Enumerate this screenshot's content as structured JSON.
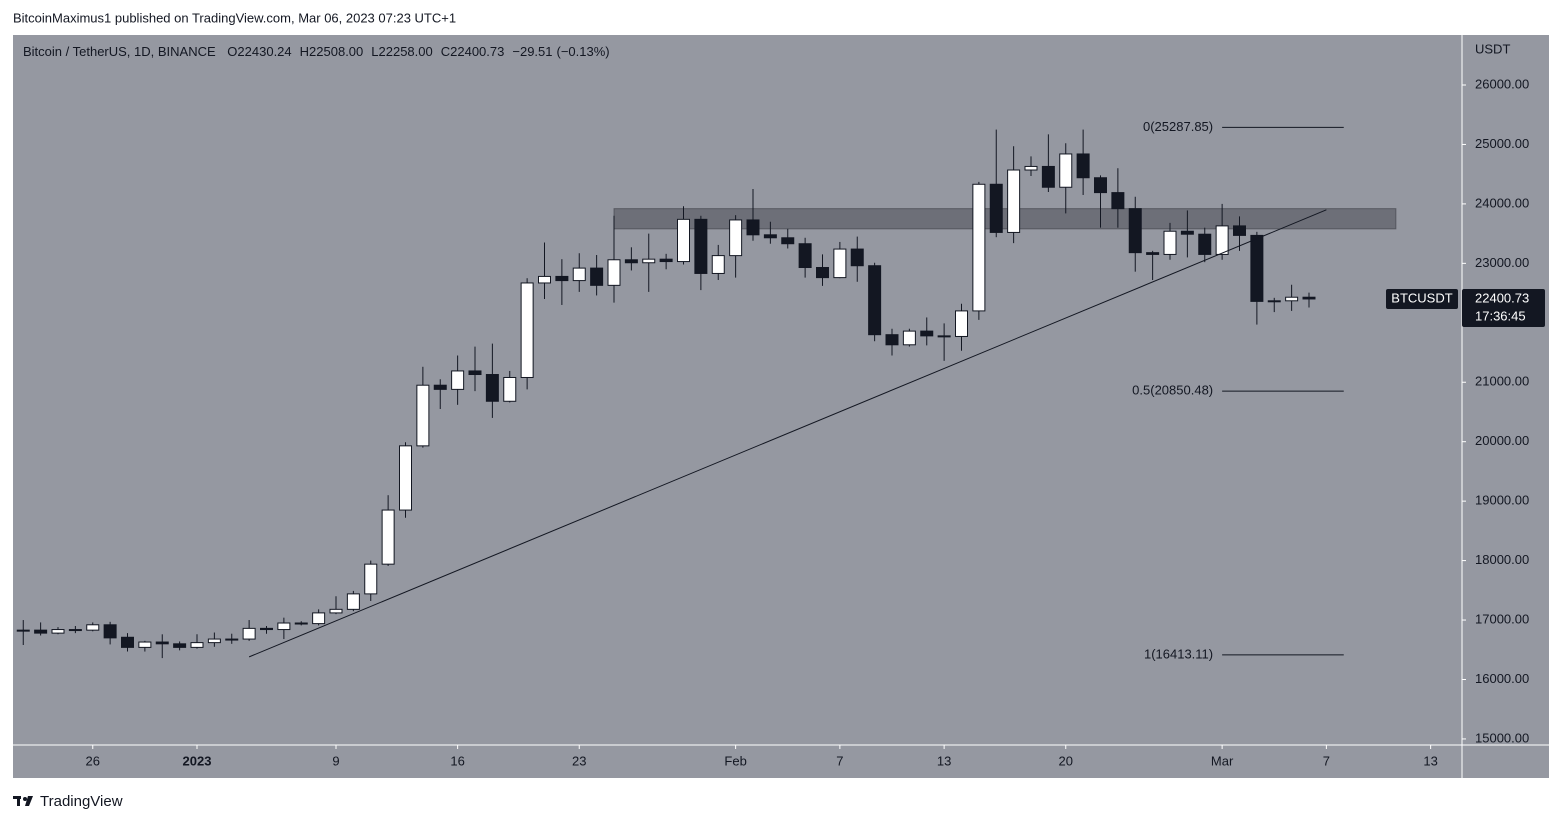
{
  "header": {
    "byline": "BitcoinMaximus1 published on TradingView.com, Mar 06, 2023 07:23 UTC+1"
  },
  "footer": {
    "brand": "TradingView"
  },
  "chart_data": {
    "type": "candlestick",
    "title": "Bitcoin / TetherUS, 1D, BINANCE",
    "legend_ohlc": [
      [
        "O",
        "22430.24"
      ],
      [
        "H",
        "22508.00"
      ],
      [
        "L",
        "22258.00"
      ],
      [
        "C",
        "22400.73"
      ]
    ],
    "change": "−29.51",
    "change_pct": "(−0.13%)",
    "y_unit": "USDT",
    "last_price": {
      "symbol": "BTCUSDT",
      "price": "22400.73",
      "countdown": "17:36:45"
    },
    "up_color": "#ffffff",
    "down_color": "#131722",
    "wick_color": "#131722",
    "background": "#9598a1",
    "grid": false,
    "x": [
      "2022-12-22",
      "2022-12-23",
      "2022-12-24",
      "2022-12-25",
      "2022-12-26",
      "2022-12-27",
      "2022-12-28",
      "2022-12-29",
      "2022-12-30",
      "2022-12-31",
      "2023-01-01",
      "2023-01-02",
      "2023-01-03",
      "2023-01-04",
      "2023-01-05",
      "2023-01-06",
      "2023-01-07",
      "2023-01-08",
      "2023-01-09",
      "2023-01-10",
      "2023-01-11",
      "2023-01-12",
      "2023-01-13",
      "2023-01-14",
      "2023-01-15",
      "2023-01-16",
      "2023-01-17",
      "2023-01-18",
      "2023-01-19",
      "2023-01-20",
      "2023-01-21",
      "2023-01-22",
      "2023-01-23",
      "2023-01-24",
      "2023-01-25",
      "2023-01-26",
      "2023-01-27",
      "2023-01-28",
      "2023-01-29",
      "2023-01-30",
      "2023-01-31",
      "2023-02-01",
      "2023-02-02",
      "2023-02-03",
      "2023-02-04",
      "2023-02-05",
      "2023-02-06",
      "2023-02-07",
      "2023-02-08",
      "2023-02-09",
      "2023-02-10",
      "2023-02-11",
      "2023-02-12",
      "2023-02-13",
      "2023-02-14",
      "2023-02-15",
      "2023-02-16",
      "2023-02-17",
      "2023-02-18",
      "2023-02-19",
      "2023-02-20",
      "2023-02-21",
      "2023-02-22",
      "2023-02-23",
      "2023-02-24",
      "2023-02-25",
      "2023-02-26",
      "2023-02-27",
      "2023-02-28",
      "2023-03-01",
      "2023-03-02",
      "2023-03-03",
      "2023-03-04",
      "2023-03-05",
      "2023-03-06"
    ],
    "open": [
      16820,
      16830,
      16780,
      16840,
      16830,
      16920,
      16710,
      16540,
      16630,
      16600,
      16540,
      16620,
      16680,
      16680,
      16860,
      16840,
      16950,
      16940,
      17120,
      17180,
      17440,
      17940,
      18850,
      19930,
      20950,
      20880,
      21190,
      21130,
      20680,
      21080,
      22670,
      22780,
      22710,
      22920,
      22630,
      23060,
      23010,
      23070,
      23030,
      23740,
      22830,
      23130,
      23730,
      23480,
      23430,
      23330,
      22930,
      22760,
      23240,
      22960,
      21800,
      21630,
      21860,
      21780,
      21770,
      22200,
      24330,
      23520,
      24570,
      24630,
      24280,
      24840,
      24440,
      24190,
      23920,
      23180,
      23150,
      23540,
      23490,
      23150,
      23630,
      23470,
      22360,
      22370,
      22430.24
    ],
    "high": [
      17000,
      16960,
      16880,
      16900,
      16960,
      16970,
      16780,
      16650,
      16760,
      16640,
      16760,
      16790,
      16770,
      17000,
      16900,
      17040,
      16980,
      17180,
      17400,
      17490,
      18000,
      19100,
      19990,
      21260,
      21050,
      21450,
      21600,
      21650,
      21190,
      22750,
      23350,
      23070,
      23170,
      23140,
      23800,
      23270,
      23500,
      23160,
      23960,
      23800,
      23310,
      23810,
      24250,
      23700,
      23580,
      23430,
      23150,
      23360,
      23450,
      23010,
      21900,
      21900,
      22090,
      21990,
      22320,
      24370,
      25250,
      24970,
      24800,
      25170,
      25020,
      25250,
      24480,
      24600,
      24120,
      23210,
      23680,
      23890,
      23600,
      24000,
      23790,
      23530,
      22420,
      22640,
      22508
    ],
    "low": [
      16580,
      16740,
      16760,
      16780,
      16810,
      16590,
      16470,
      16470,
      16360,
      16490,
      16520,
      16550,
      16600,
      16650,
      16770,
      16680,
      16910,
      16910,
      17100,
      17150,
      17320,
      17910,
      18720,
      19900,
      20550,
      20620,
      20850,
      20400,
      20660,
      20880,
      22400,
      22300,
      22520,
      22460,
      22340,
      22880,
      22520,
      22900,
      22980,
      22550,
      22720,
      22760,
      23380,
      23330,
      23250,
      22760,
      22620,
      22750,
      22690,
      21690,
      21450,
      21600,
      21620,
      21360,
      21530,
      22050,
      23440,
      23340,
      24470,
      24200,
      23840,
      24150,
      23600,
      23600,
      22860,
      22720,
      23060,
      23100,
      23020,
      23060,
      23210,
      21970,
      22180,
      22200,
      22258
    ],
    "close": [
      16830,
      16780,
      16840,
      16830,
      16920,
      16700,
      16540,
      16630,
      16600,
      16540,
      16620,
      16680,
      16680,
      16860,
      16840,
      16950,
      16940,
      17120,
      17180,
      17440,
      17940,
      18850,
      19930,
      20950,
      20880,
      21190,
      21130,
      20680,
      21080,
      22670,
      22780,
      22710,
      22920,
      22630,
      23060,
      23010,
      23070,
      23030,
      23740,
      22830,
      23130,
      23730,
      23480,
      23430,
      23330,
      22930,
      22760,
      23240,
      22960,
      21800,
      21630,
      21860,
      21780,
      21770,
      22200,
      24330,
      23520,
      24570,
      24630,
      24280,
      24840,
      24440,
      24190,
      23920,
      23180,
      23150,
      23540,
      23490,
      23150,
      23630,
      23470,
      22360,
      22370,
      22430,
      22400.73
    ],
    "xlim": [
      "2022-12-21",
      "2023-03-15"
    ],
    "xticks": [
      {
        "value": "2022-12-26",
        "label": "26"
      },
      {
        "value": "2023-01-01",
        "label": "2023"
      },
      {
        "value": "2023-01-09",
        "label": "9"
      },
      {
        "value": "2023-01-16",
        "label": "16"
      },
      {
        "value": "2023-01-23",
        "label": "23"
      },
      {
        "value": "2023-02-01",
        "label": "Feb"
      },
      {
        "value": "2023-02-07",
        "label": "7"
      },
      {
        "value": "2023-02-13",
        "label": "13"
      },
      {
        "value": "2023-02-20",
        "label": "20"
      },
      {
        "value": "2023-03-01",
        "label": "Mar"
      },
      {
        "value": "2023-03-07",
        "label": "7"
      },
      {
        "value": "2023-03-13",
        "label": "13"
      }
    ],
    "ylim": [
      14898,
      26841
    ],
    "yticks": [
      {
        "value": 15000,
        "label": "15000.00"
      },
      {
        "value": 16000,
        "label": "16000.00"
      },
      {
        "value": 17000,
        "label": "17000.00"
      },
      {
        "value": 18000,
        "label": "18000.00"
      },
      {
        "value": 19000,
        "label": "19000.00"
      },
      {
        "value": 20000,
        "label": "20000.00"
      },
      {
        "value": 21000,
        "label": "21000.00"
      },
      {
        "value": 22000,
        "label": "22000.00"
      },
      {
        "value": 23000,
        "label": "23000.00"
      },
      {
        "value": 24000,
        "label": "24000.00"
      },
      {
        "value": 25000,
        "label": "25000.00"
      },
      {
        "value": 26000,
        "label": "26000.00"
      }
    ],
    "fib_levels": [
      {
        "label": "0(25287.85)",
        "value": 25287.85
      },
      {
        "label": "0.5(20850.48)",
        "value": 20850.48
      },
      {
        "label": "1(16413.11)",
        "value": 16413.11
      }
    ],
    "fib_x": [
      "2023-03-01",
      "2023-03-08"
    ],
    "trendline": {
      "x": [
        "2023-01-04",
        "2023-03-07"
      ],
      "values": [
        16380,
        23900
      ]
    },
    "zone": {
      "x": [
        "2023-01-25",
        "2023-03-11"
      ],
      "values": [
        23580,
        23920
      ]
    }
  }
}
